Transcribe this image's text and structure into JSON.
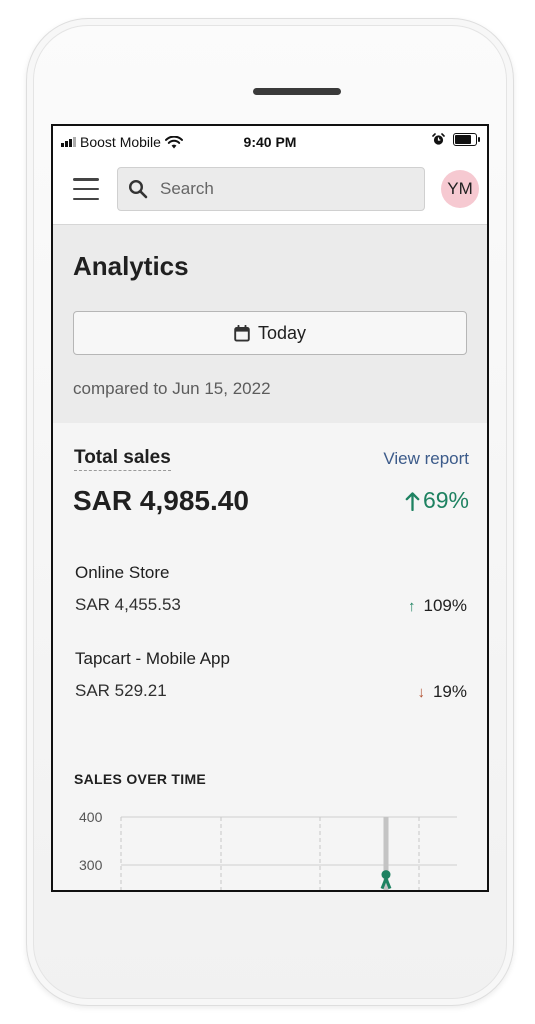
{
  "status_bar": {
    "carrier": "Boost Mobile",
    "time": "9:40 PM"
  },
  "top_bar": {
    "search_placeholder": "Search",
    "avatar_initials": "YM"
  },
  "page": {
    "title": "Analytics",
    "date_button_label": "Today",
    "compared_text": "compared to Jun 15, 2022"
  },
  "total_sales": {
    "label": "Total sales",
    "view_report": "View report",
    "value": "SAR 4,985.40",
    "change": "69%"
  },
  "channels": [
    {
      "name": "Online Store",
      "value": "SAR 4,455.53",
      "change": "109%",
      "direction": "up"
    },
    {
      "name": "Tapcart - Mobile App",
      "value": "SAR 529.21",
      "change": "19%",
      "direction": "down"
    }
  ],
  "colors": {
    "positive": "#1e8261",
    "negative": "#b04f2e",
    "link": "#3c5b8a",
    "avatar": "#f6c9d1"
  },
  "chart_data": {
    "type": "line",
    "title": "SALES OVER TIME",
    "y_ticks": [
      "400",
      "300"
    ],
    "ylim": [
      250,
      400
    ],
    "xlabel": "",
    "ylabel": "",
    "grid": true,
    "highlight_value": 280
  }
}
